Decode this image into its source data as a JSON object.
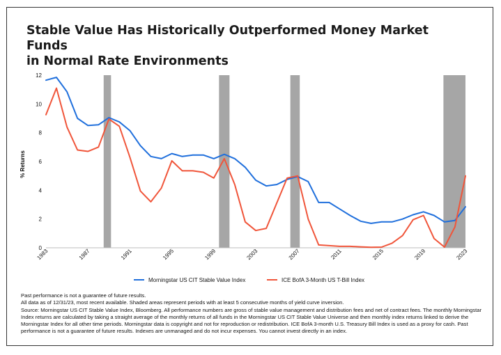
{
  "colors": {
    "stable_value": "#1f6fdc",
    "tbill": "#f0553a",
    "recession_shading": "#a6a6a6",
    "axis": "#bdbdbd",
    "text": "#111111"
  },
  "chart_data": {
    "type": "line",
    "title": "Stable Value Has Historically Outperformed Money Market Funds in Normal Rate Environments",
    "title_lines": [
      "Stable Value Has Historically Outperformed Money Market Funds",
      "in Normal Rate Environments"
    ],
    "xlabel": "",
    "ylabel": "% Returns",
    "xlim": [
      1983,
      2023
    ],
    "ylim": [
      0,
      12
    ],
    "yticks": [
      0,
      2,
      4,
      6,
      8,
      10,
      12
    ],
    "xticks": [
      "1983",
      "1987",
      "1991",
      "1995",
      "1999",
      "2003",
      "2007",
      "2011",
      "2015",
      "2019",
      "2023"
    ],
    "grid": false,
    "legend_position": "bottom",
    "shaded_periods": [
      [
        1988.5,
        1989.2
      ],
      [
        1999.5,
        2000.5
      ],
      [
        2006.3,
        2007.2
      ],
      [
        2020.9,
        2023
      ]
    ],
    "x": [
      1983,
      1984,
      1985,
      1986,
      1987,
      1988,
      1989,
      1990,
      1991,
      1992,
      1993,
      1994,
      1995,
      1996,
      1997,
      1998,
      1999,
      2000,
      2001,
      2002,
      2003,
      2004,
      2005,
      2006,
      2007,
      2008,
      2009,
      2010,
      2011,
      2012,
      2013,
      2014,
      2015,
      2016,
      2017,
      2018,
      2019,
      2020,
      2021,
      2022,
      2023
    ],
    "series": [
      {
        "name": "Morningstar US CIT Stable Value Index",
        "color": "#1f6fdc",
        "values": [
          11.65,
          11.85,
          10.85,
          9.0,
          8.5,
          8.55,
          9.05,
          8.75,
          8.15,
          7.1,
          6.35,
          6.2,
          6.55,
          6.35,
          6.45,
          6.45,
          6.2,
          6.5,
          6.2,
          5.6,
          4.7,
          4.3,
          4.4,
          4.75,
          4.95,
          4.6,
          3.15,
          3.15,
          2.7,
          2.25,
          1.85,
          1.7,
          1.8,
          1.8,
          2.0,
          2.3,
          2.5,
          2.25,
          1.8,
          1.9,
          2.85
        ]
      },
      {
        "name": "ICE BofA 3-Month US T-Bill Index",
        "color": "#f0553a",
        "values": [
          9.25,
          11.1,
          8.4,
          6.8,
          6.7,
          7.0,
          8.95,
          8.45,
          6.3,
          3.95,
          3.2,
          4.15,
          6.05,
          5.35,
          5.35,
          5.25,
          4.85,
          6.2,
          4.4,
          1.8,
          1.2,
          1.35,
          3.1,
          4.85,
          5.0,
          2.0,
          0.2,
          0.15,
          0.1,
          0.1,
          0.07,
          0.04,
          0.05,
          0.32,
          0.85,
          1.95,
          2.25,
          0.65,
          0.05,
          1.45,
          5.0
        ]
      }
    ]
  },
  "notes": {
    "line1": "Past performance is not a guarantee of future results.",
    "line2": "All data as of 12/31/23, most recent available. Shaded areas represent periods with at least 5 consecutive months of yield curve inversion.",
    "line3": "Source: Morningstar US CIT Stable Value Index, Bloomberg. All performance numbers are gross of stable value management and distribution fees and net of contract fees. The monthly Morningstar Index returns are calculated by taking a straight average of the monthly returns of all funds in the Morningstar US CIT Stable Value Universe and then monthly index returns linked to derive the Morningstar Index for all other time periods. Morningstar data is copyright and not for reproduction or redistribution. ICE BofA 3-month U.S. Treasury Bill Index is used as a proxy for cash. Past performance is not a guarantee of future results. Indexes are unmanaged and do not incur expenses. You cannot invest directly in an index."
  }
}
